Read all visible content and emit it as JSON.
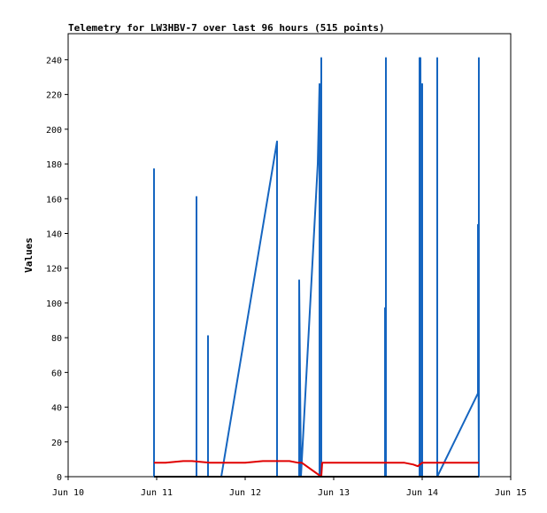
{
  "chart_data": {
    "type": "line",
    "title": "Telemetry for LW3HBV-7 over last 96 hours (515 points)",
    "ylabel": "Values",
    "xlabel": "",
    "xlim": [
      "Jun 10",
      "Jun 15"
    ],
    "ylim": [
      0,
      255
    ],
    "x_ticks": [
      "Jun 10",
      "Jun 11",
      "Jun 12",
      "Jun 13",
      "Jun 14",
      "Jun 15"
    ],
    "y_ticks": [
      0,
      20,
      40,
      60,
      80,
      100,
      120,
      140,
      160,
      180,
      200,
      220,
      240
    ],
    "grid": false,
    "legend": "none",
    "colors": {
      "blue_series": "#1565c0",
      "red_series": "#e00000",
      "black_series": "#000000"
    },
    "series": [
      {
        "color": "#1565c0",
        "x_days": [
          10.97,
          10.97,
          10.97,
          11.45,
          11.45,
          11.45,
          11.58,
          11.58,
          11.58,
          11.73,
          12.36,
          12.36,
          12.36,
          12.61,
          12.61,
          12.63,
          12.82,
          12.84,
          12.84,
          12.84,
          12.86,
          12.86,
          12.86,
          13.58,
          13.58,
          13.59,
          13.59,
          13.59,
          13.97,
          13.97,
          13.98,
          13.98,
          13.99,
          13.99,
          13.99,
          14.0,
          14.0,
          14.0,
          14.01,
          14.01,
          14.01,
          14.17,
          14.17,
          14.17,
          14.63,
          14.63,
          14.64,
          14.64,
          14.64,
          14.64
        ],
        "values": [
          0,
          177,
          0,
          0,
          161,
          0,
          0,
          81,
          0,
          0,
          193,
          0,
          0,
          0,
          113,
          0,
          180,
          226,
          204,
          0,
          0,
          241,
          0,
          0,
          97,
          0,
          241,
          0,
          0,
          241,
          0,
          241,
          0,
          113,
          0,
          0,
          226,
          0,
          0,
          0,
          0,
          0,
          241,
          0,
          48,
          145,
          0,
          241,
          0,
          0
        ]
      },
      {
        "color": "#e00000",
        "x_days": [
          10.97,
          11.1,
          11.3,
          11.4,
          11.6,
          11.8,
          12.0,
          12.2,
          12.4,
          12.5,
          12.6,
          12.64,
          12.86,
          12.87,
          13.0,
          13.5,
          13.8,
          13.9,
          13.95,
          14.0,
          14.2,
          14.4,
          14.64
        ],
        "values": [
          8,
          8,
          9,
          9,
          8,
          8,
          8,
          9,
          9,
          9,
          8,
          8,
          0,
          8,
          8,
          8,
          8,
          7,
          6,
          8,
          8,
          8,
          8
        ]
      },
      {
        "color": "#000000",
        "x_days": [
          10.97,
          14.64
        ],
        "values": [
          0,
          0
        ]
      }
    ]
  }
}
